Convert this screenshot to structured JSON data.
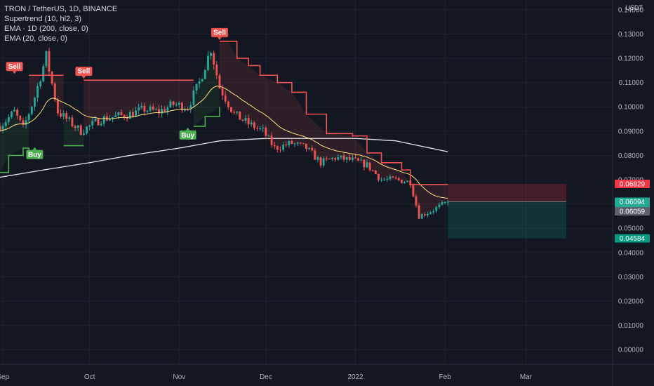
{
  "legend": {
    "symbol": "TRON / TetherUS, 1D, BINANCE",
    "supertrend": "Supertrend (10, hl2, 3)",
    "ema200": "EMA · 1D (200, close, 0)",
    "ema20": "EMA (20, close, 0)"
  },
  "colors": {
    "background": "#131722",
    "grid": "#1e222d",
    "up": "#26a69a",
    "down": "#ef5350",
    "supertrend_up": "#4caf50",
    "supertrend_down": "#f05350",
    "ema20": "#ffe082",
    "ema200": "#e6e6e6"
  },
  "chart_data": {
    "type": "candlestick",
    "y_unit": "USDT",
    "ylim": [
      -0.006,
      0.144
    ],
    "y_ticks": [
      "0.14000",
      "0.13000",
      "0.12000",
      "0.11000",
      "0.10000",
      "0.09000",
      "0.08000",
      "0.07000",
      "0.06000",
      "0.05000",
      "0.04000",
      "0.03000",
      "0.02000",
      "0.01000",
      "0.00000"
    ],
    "x_labels": [
      "Sep",
      "Oct",
      "Nov",
      "Dec",
      "2022",
      "Feb",
      "Mar"
    ],
    "x_label_dates": [
      "2021-09-01",
      "2021-10-01",
      "2021-11-01",
      "2021-12-01",
      "2022-01-01",
      "2022-02-01",
      "2022-03-01"
    ],
    "x_range": [
      "2021-08-31",
      "2022-03-31"
    ],
    "close_series_sampled": [
      [
        "2021-08-31",
        0.092
      ],
      [
        "2021-09-05",
        0.098
      ],
      [
        "2021-09-08",
        0.091
      ],
      [
        "2021-09-12",
        0.104
      ],
      [
        "2021-09-16",
        0.121
      ],
      [
        "2021-09-20",
        0.098
      ],
      [
        "2021-09-24",
        0.094
      ],
      [
        "2021-09-28",
        0.09
      ],
      [
        "2021-10-01",
        0.092
      ],
      [
        "2021-10-05",
        0.095
      ],
      [
        "2021-10-10",
        0.096
      ],
      [
        "2021-10-15",
        0.097
      ],
      [
        "2021-10-20",
        0.099
      ],
      [
        "2021-10-25",
        0.098
      ],
      [
        "2021-10-30",
        0.101
      ],
      [
        "2021-11-04",
        0.1
      ],
      [
        "2021-11-08",
        0.11
      ],
      [
        "2021-11-12",
        0.124
      ],
      [
        "2021-11-15",
        0.108
      ],
      [
        "2021-11-20",
        0.097
      ],
      [
        "2021-11-25",
        0.093
      ],
      [
        "2021-11-30",
        0.09
      ],
      [
        "2021-12-04",
        0.083
      ],
      [
        "2021-12-10",
        0.085
      ],
      [
        "2021-12-15",
        0.083
      ],
      [
        "2021-12-20",
        0.077
      ],
      [
        "2021-12-25",
        0.079
      ],
      [
        "2021-12-31",
        0.078
      ],
      [
        "2022-01-05",
        0.076
      ],
      [
        "2022-01-10",
        0.07
      ],
      [
        "2022-01-15",
        0.07
      ],
      [
        "2022-01-20",
        0.069
      ],
      [
        "2022-01-23",
        0.055
      ],
      [
        "2022-01-27",
        0.057
      ],
      [
        "2022-02-02",
        0.0609
      ]
    ],
    "ohlc_visible": "daily candles, ~155 bars (reconstructed from close series)",
    "ema200_sampled": [
      [
        "2021-08-31",
        0.071
      ],
      [
        "2021-09-15",
        0.074
      ],
      [
        "2021-10-01",
        0.077
      ],
      [
        "2021-10-15",
        0.08
      ],
      [
        "2021-11-01",
        0.083
      ],
      [
        "2021-11-15",
        0.086
      ],
      [
        "2021-12-01",
        0.087
      ],
      [
        "2021-12-15",
        0.087
      ],
      [
        "2022-01-01",
        0.087
      ],
      [
        "2022-01-15",
        0.086
      ],
      [
        "2022-02-02",
        0.0815
      ]
    ],
    "supertrend_segments": [
      {
        "direction": "up",
        "points": [
          [
            "2021-08-31",
            0.073
          ],
          [
            "2021-09-03",
            0.08
          ],
          [
            "2021-09-08",
            0.083
          ],
          [
            "2021-09-10",
            0.08
          ]
        ]
      },
      {
        "direction": "down",
        "points": [
          [
            "2021-09-10",
            0.113
          ],
          [
            "2021-09-22",
            0.113
          ]
        ]
      },
      {
        "direction": "up",
        "points": [
          [
            "2021-09-22",
            0.084
          ],
          [
            "2021-09-29",
            0.084
          ]
        ]
      },
      {
        "direction": "down",
        "points": [
          [
            "2021-09-29",
            0.111
          ],
          [
            "2021-11-06",
            0.111
          ]
        ]
      },
      {
        "direction": "up",
        "points": [
          [
            "2021-11-06",
            0.092
          ],
          [
            "2021-11-10",
            0.096
          ],
          [
            "2021-11-15",
            0.1
          ]
        ]
      },
      {
        "direction": "down",
        "points": [
          [
            "2021-11-15",
            0.127
          ],
          [
            "2021-11-18",
            0.127
          ],
          [
            "2021-11-21",
            0.12
          ],
          [
            "2021-11-25",
            0.117
          ],
          [
            "2021-11-29",
            0.113
          ],
          [
            "2021-12-05",
            0.11
          ],
          [
            "2021-12-10",
            0.106
          ],
          [
            "2021-12-15",
            0.097
          ],
          [
            "2021-12-22",
            0.089
          ],
          [
            "2021-12-31",
            0.088
          ],
          [
            "2022-01-05",
            0.081
          ],
          [
            "2022-01-10",
            0.077
          ],
          [
            "2022-01-17",
            0.074
          ],
          [
            "2022-01-20",
            0.068
          ],
          [
            "2022-02-02",
            0.068
          ]
        ]
      }
    ],
    "signals": [
      {
        "label": "Sell",
        "date": "2021-09-05",
        "price": 0.113,
        "type": "sell"
      },
      {
        "label": "Buy",
        "date": "2021-09-12",
        "price": 0.084,
        "type": "buy"
      },
      {
        "label": "Sell",
        "date": "2021-09-29",
        "price": 0.111,
        "type": "sell"
      },
      {
        "label": "Buy",
        "date": "2021-11-04",
        "price": 0.092,
        "type": "buy"
      },
      {
        "label": "Sell",
        "date": "2021-11-15",
        "price": 0.127,
        "type": "sell"
      }
    ],
    "position_box": {
      "entry": 0.0609,
      "stop": 0.06829,
      "target": 0.04584,
      "start": "2022-02-02",
      "end": "2022-03-15"
    },
    "price_labels": [
      {
        "value": "0.06829",
        "color": "#f23645"
      },
      {
        "value": "0.06094",
        "color": "#22ab94"
      },
      {
        "value": "14:24:30",
        "color": "#22ab94"
      },
      {
        "value": "0.06059",
        "color": "#5d606b"
      },
      {
        "value": "0.04584",
        "color": "#089981"
      }
    ]
  }
}
